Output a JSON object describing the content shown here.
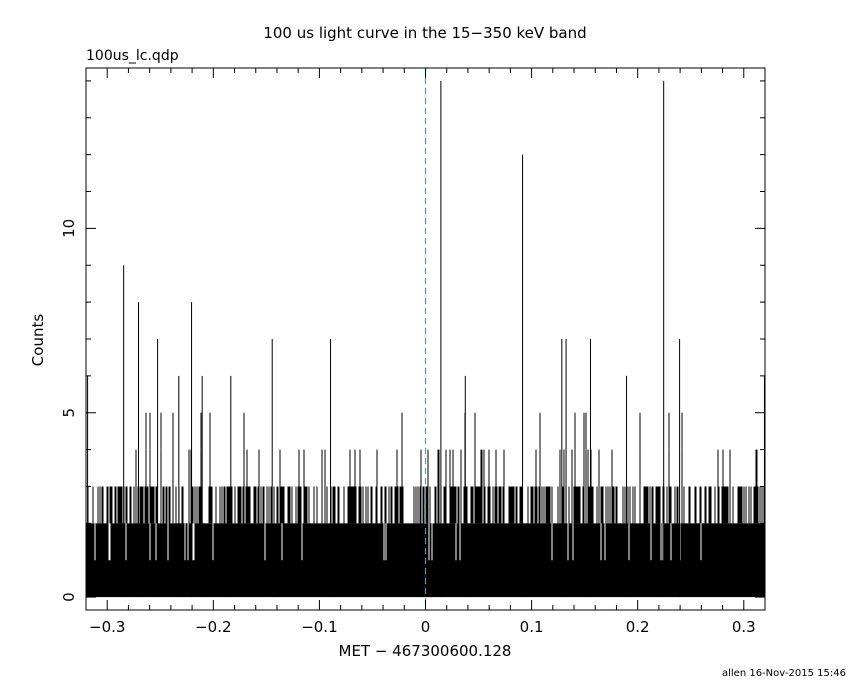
{
  "chart_data": {
    "type": "bar",
    "title": "100 us light curve in the 15−350 keV band",
    "subtitle": "100us_lc.qdp",
    "xlabel": "MET − 467300600.128",
    "ylabel": "Counts",
    "footer": "allen 16-Nov-2015 15:46",
    "xlim": [
      -0.32,
      0.32
    ],
    "ylim": [
      -0.35,
      14.35
    ],
    "x_ticks": [
      {
        "value": -0.3,
        "label": "−0.3"
      },
      {
        "value": -0.2,
        "label": "−0.2"
      },
      {
        "value": -0.1,
        "label": "−0.1"
      },
      {
        "value": 0,
        "label": "0"
      },
      {
        "value": 0.1,
        "label": "0.1"
      },
      {
        "value": 0.2,
        "label": "0.2"
      },
      {
        "value": 0.3,
        "label": "0.3"
      }
    ],
    "y_ticks": [
      {
        "value": 0,
        "label": "0"
      },
      {
        "value": 5,
        "label": "5"
      },
      {
        "value": 10,
        "label": "10"
      }
    ],
    "trigger_line": {
      "x": 0,
      "color": "#3a9fd0",
      "style": "dashed"
    },
    "bin_width": 0.0001,
    "baseline_level": 2,
    "spikes": [
      {
        "x": -0.3185,
        "y": 6
      },
      {
        "x": -0.2845,
        "y": 9
      },
      {
        "x": -0.2705,
        "y": 8
      },
      {
        "x": -0.2525,
        "y": 7
      },
      {
        "x": -0.2325,
        "y": 6
      },
      {
        "x": -0.2205,
        "y": 8
      },
      {
        "x": -0.2105,
        "y": 6
      },
      {
        "x": -0.1835,
        "y": 6
      },
      {
        "x": -0.1445,
        "y": 7
      },
      {
        "x": -0.0895,
        "y": 7
      },
      {
        "x": 0.0145,
        "y": 14
      },
      {
        "x": 0.0375,
        "y": 6
      },
      {
        "x": 0.0915,
        "y": 12
      },
      {
        "x": 0.1285,
        "y": 7
      },
      {
        "x": 0.1325,
        "y": 7
      },
      {
        "x": 0.1555,
        "y": 7
      },
      {
        "x": 0.1895,
        "y": 6
      },
      {
        "x": 0.2245,
        "y": 14
      },
      {
        "x": 0.2395,
        "y": 7
      },
      {
        "x": 0.3195,
        "y": 6
      }
    ],
    "grid": false,
    "colors": {
      "data": "#000000",
      "axes": "#000000"
    }
  }
}
